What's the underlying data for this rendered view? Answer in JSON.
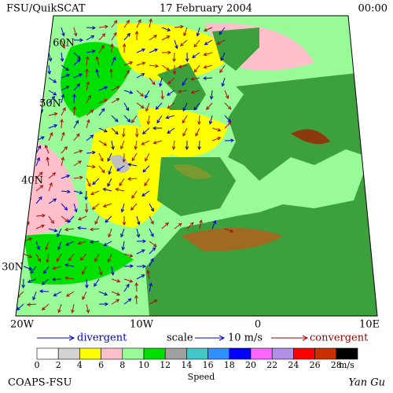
{
  "header": {
    "left": "FSU/QuikSCAT",
    "center": "17 February 2004",
    "right": "00:00"
  },
  "map": {
    "lat_labels": [
      "60N",
      "50N",
      "40N",
      "30N"
    ],
    "lon_labels": [
      "20W",
      "10W",
      "0",
      "10E"
    ]
  },
  "legend": {
    "divergent": "divergent",
    "scale": "scale",
    "scale_value": "10 m/s",
    "convergent": "convergent"
  },
  "colorbar": {
    "ticks": [
      "0",
      "2",
      "4",
      "6",
      "8",
      "10",
      "12",
      "14",
      "16",
      "18",
      "20",
      "22",
      "24",
      "26",
      "28"
    ],
    "unit": "m/s",
    "title": "Speed",
    "colors": [
      "#ffffff",
      "#d3d3d3",
      "#ffff00",
      "#ffc0cb",
      "#98fb98",
      "#00e000",
      "#a0a0a0",
      "#40c8c8",
      "#3090ff",
      "#0000ff",
      "#ff66ff",
      "#b090e8",
      "#ff0000",
      "#c83000",
      "#000000"
    ]
  },
  "footer": {
    "left": "COAPS-FSU",
    "right": "Yan Gu"
  }
}
